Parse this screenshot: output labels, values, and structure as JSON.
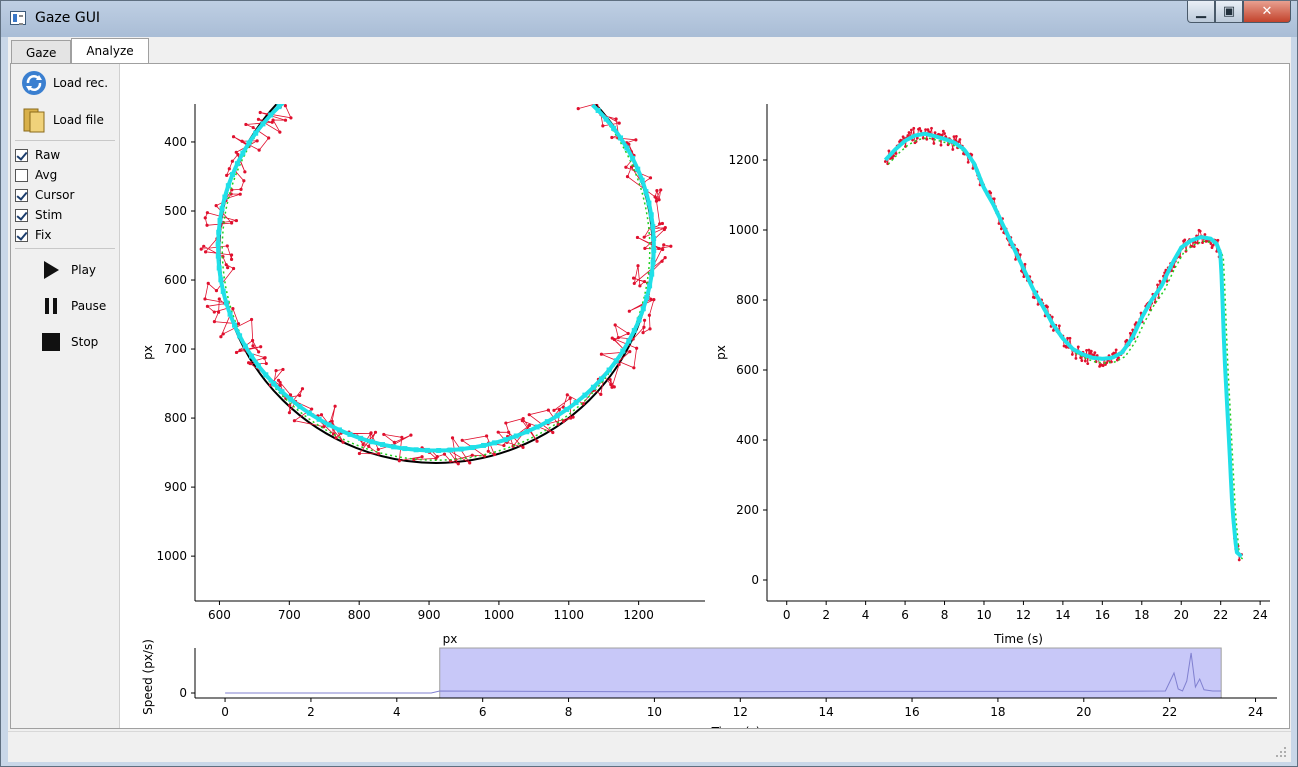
{
  "window": {
    "title": "Gaze GUI",
    "minimize": "▁",
    "maximize": "▣",
    "close": "✕"
  },
  "tabs": [
    {
      "label": "Gaze",
      "active": false
    },
    {
      "label": "Analyze",
      "active": true
    }
  ],
  "sidebar": {
    "load_rec": "Load rec.",
    "load_file": "Load file",
    "checkboxes": [
      {
        "label": "Raw",
        "checked": true
      },
      {
        "label": "Avg",
        "checked": false
      },
      {
        "label": "Cursor",
        "checked": true
      },
      {
        "label": "Stim",
        "checked": true
      },
      {
        "label": "Fix",
        "checked": true
      }
    ],
    "play": "Play",
    "pause": "Pause",
    "stop": "Stop"
  },
  "colors": {
    "raw": "#e0102e",
    "fix": "#20e0e8",
    "cursor": "#1fcf1f",
    "stim": "#000000",
    "selection": "#c8c8f8"
  },
  "chart_data": [
    {
      "type": "scatter",
      "title": "",
      "xlabel": "px",
      "ylabel": "px",
      "xlim": [
        565,
        1295
      ],
      "ylim": [
        1065,
        345
      ],
      "y_inverted": true,
      "xticks": [
        600,
        700,
        800,
        900,
        1000,
        1100,
        1200
      ],
      "yticks": [
        400,
        500,
        600,
        700,
        800,
        900,
        1000
      ],
      "stim_circle": {
        "cx": 910,
        "cy": 555,
        "r": 310
      }
    },
    {
      "type": "line",
      "title": "",
      "xlabel": "Time (s)",
      "ylabel": "px",
      "xlim": [
        -1,
        24.5
      ],
      "ylim": [
        -60,
        1360
      ],
      "xticks": [
        0,
        2,
        4,
        6,
        8,
        10,
        12,
        14,
        16,
        18,
        20,
        22,
        24
      ],
      "yticks": [
        0,
        200,
        400,
        600,
        800,
        1000,
        1200
      ],
      "series": [
        {
          "x": [
            5.0,
            5.5,
            6.0,
            6.5,
            7.0,
            7.5,
            8.0,
            8.5,
            9.0,
            9.5,
            10.0,
            10.5,
            11.0,
            11.5,
            12.0,
            12.5,
            13.0,
            13.5,
            14.0,
            14.5,
            15.0,
            15.5,
            16.0,
            16.5,
            17.0,
            17.5,
            18.0,
            18.5,
            19.0,
            19.5,
            20.0,
            20.5,
            21.0,
            21.5,
            21.8,
            22.0,
            22.2,
            22.4,
            22.6,
            22.8,
            23.0,
            23.1
          ],
          "y": [
            1200,
            1230,
            1255,
            1270,
            1275,
            1268,
            1260,
            1250,
            1230,
            1190,
            1120,
            1070,
            1010,
            950,
            890,
            830,
            780,
            730,
            690,
            660,
            645,
            635,
            632,
            635,
            650,
            690,
            750,
            800,
            840,
            900,
            950,
            970,
            980,
            975,
            960,
            930,
            635,
            420,
            200,
            80,
            70,
            65
          ]
        }
      ]
    },
    {
      "type": "line",
      "title": "",
      "xlabel": "Time (s)",
      "ylabel": "Speed (px/s)",
      "xlim": [
        -0.7,
        24.5
      ],
      "xticks": [
        0,
        2,
        4,
        6,
        8,
        10,
        12,
        14,
        16,
        18,
        20,
        22,
        24
      ],
      "yticks": [
        0
      ],
      "selection": [
        5.0,
        23.2
      ],
      "series": [
        {
          "x": [
            0,
            3,
            4.8,
            5.0,
            10,
            15,
            20,
            21.9,
            22.1,
            22.2,
            22.3,
            22.4,
            22.5,
            22.6,
            22.7,
            22.8,
            23.0,
            23.2
          ],
          "y": [
            0,
            0,
            0,
            0.05,
            0.03,
            0.04,
            0.04,
            0.05,
            0.5,
            0.1,
            0.05,
            0.3,
            1.0,
            0.15,
            0.35,
            0.08,
            0.05,
            0.05
          ]
        }
      ]
    }
  ]
}
